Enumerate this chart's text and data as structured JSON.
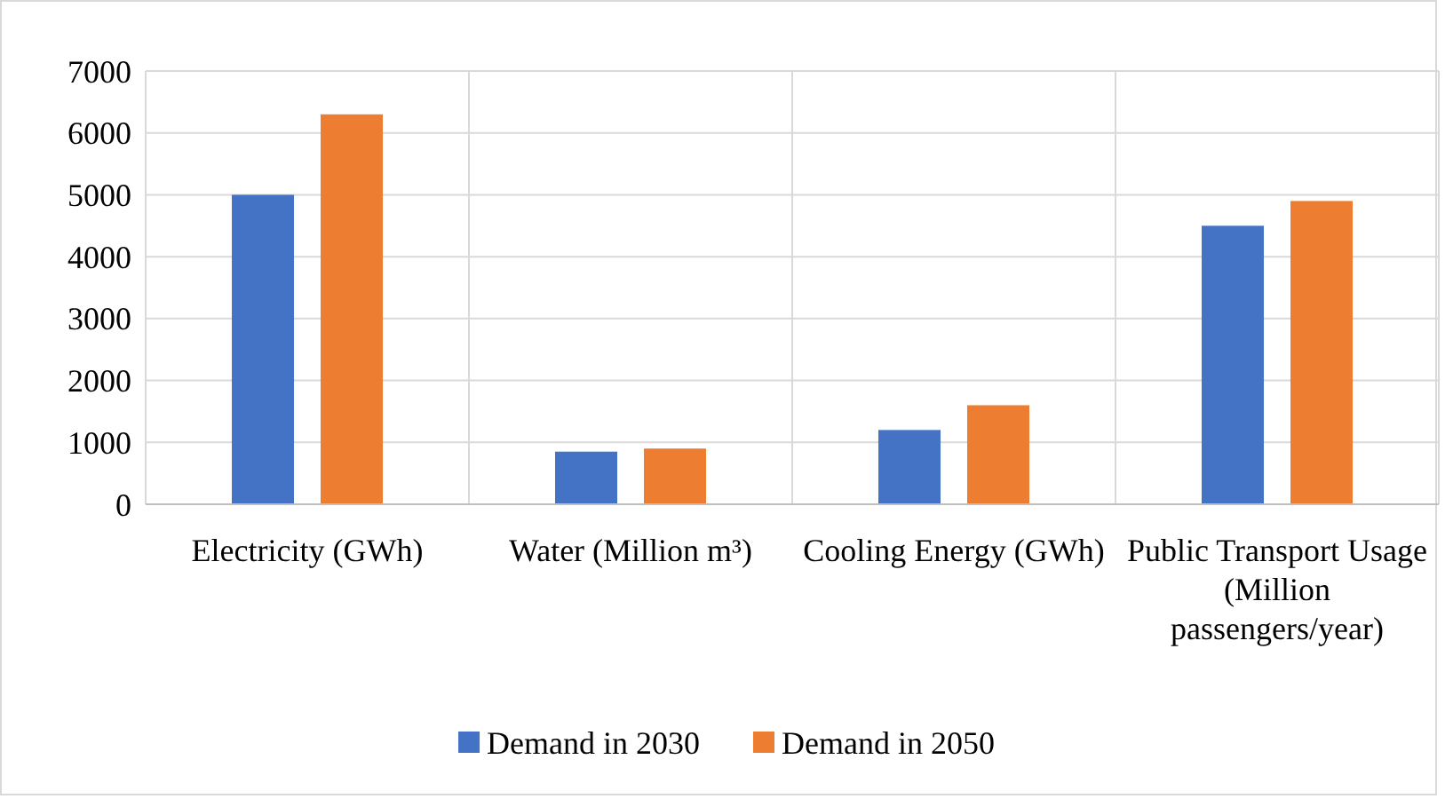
{
  "chart_data": {
    "type": "bar",
    "categories": [
      "Electricity (GWh)",
      "Water (Million m³)",
      "Cooling Energy (GWh)",
      "Public Transport Usage (Million passengers/year)"
    ],
    "series": [
      {
        "name": "Demand in 2030",
        "color": "#4472c4",
        "values": [
          5000,
          850,
          1200,
          4500
        ]
      },
      {
        "name": "Demand in 2050",
        "color": "#ed7d31",
        "values": [
          6300,
          900,
          1600,
          4900
        ]
      }
    ],
    "ylim": [
      0,
      7000
    ],
    "yticks": [
      0,
      1000,
      2000,
      3000,
      4000,
      5000,
      6000,
      7000
    ],
    "grid": true,
    "legend": "bottom"
  }
}
